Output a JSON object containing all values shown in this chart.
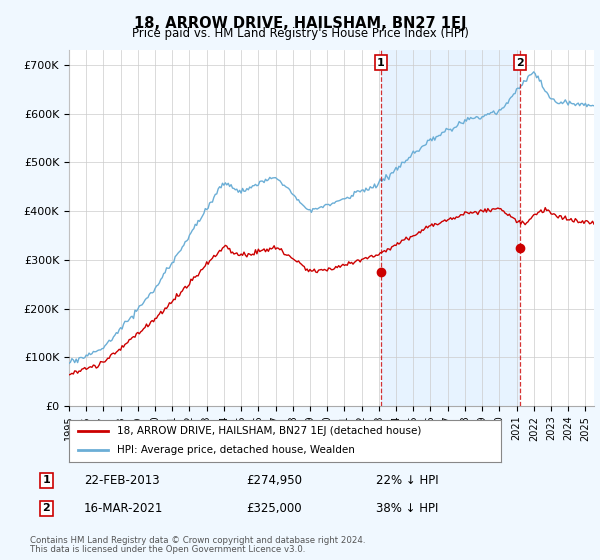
{
  "title": "18, ARROW DRIVE, HAILSHAM, BN27 1EJ",
  "subtitle": "Price paid vs. HM Land Registry's House Price Index (HPI)",
  "ylabel_ticks": [
    "£0",
    "£100K",
    "£200K",
    "£300K",
    "£400K",
    "£500K",
    "£600K",
    "£700K"
  ],
  "ytick_values": [
    0,
    100000,
    200000,
    300000,
    400000,
    500000,
    600000,
    700000
  ],
  "ylim": [
    0,
    730000
  ],
  "xlim_start": 1995.0,
  "xlim_end": 2025.5,
  "hpi_color": "#6baed6",
  "hpi_fill_color": "#ddeeff",
  "price_color": "#cc0000",
  "sale1_year": 2013.12,
  "sale1_price": 274950,
  "sale2_year": 2021.21,
  "sale2_price": 325000,
  "legend_line1": "18, ARROW DRIVE, HAILSHAM, BN27 1EJ (detached house)",
  "legend_line2": "HPI: Average price, detached house, Wealden",
  "sale1_date": "22-FEB-2013",
  "sale1_display": "£274,950",
  "sale1_pct": "22% ↓ HPI",
  "sale2_date": "16-MAR-2021",
  "sale2_display": "£325,000",
  "sale2_pct": "38% ↓ HPI",
  "footer1": "Contains HM Land Registry data © Crown copyright and database right 2024.",
  "footer2": "This data is licensed under the Open Government Licence v3.0.",
  "background_color": "#f0f8ff",
  "plot_bg_color": "#ffffff",
  "grid_color": "#cccccc"
}
